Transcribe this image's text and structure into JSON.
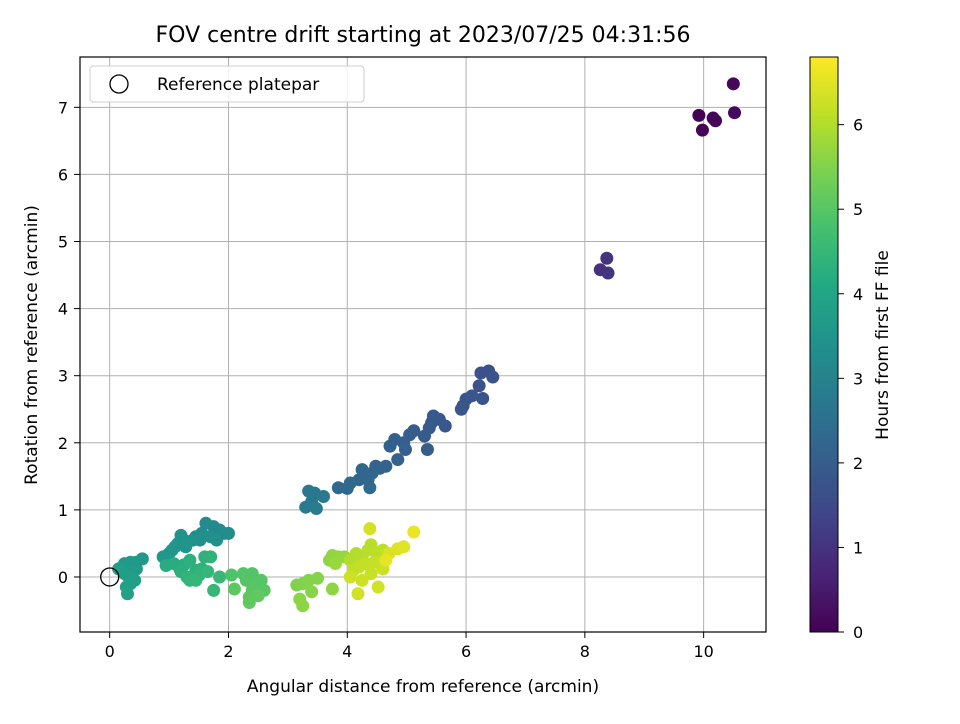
{
  "chart_data": {
    "type": "scatter",
    "title": "FOV centre drift starting at 2023/07/25 04:31:56",
    "xlabel": "Angular distance from reference (arcmin)",
    "ylabel": "Rotation from reference (arcmin)",
    "xlim": [
      -0.5,
      11.05
    ],
    "ylim": [
      -0.82,
      7.75
    ],
    "xticks": [
      "0",
      "2",
      "4",
      "6",
      "8",
      "10"
    ],
    "yticks": [
      "0",
      "1",
      "2",
      "3",
      "4",
      "5",
      "6",
      "7"
    ],
    "grid": true,
    "legend": {
      "position": "top-left",
      "entries": [
        "Reference platepar"
      ]
    },
    "reference": {
      "x": 0,
      "y": 0
    },
    "colorbar": {
      "label": "Hours from first FF file",
      "colormap": "viridis",
      "range": [
        0,
        6.8
      ],
      "ticks": [
        "0",
        "1",
        "2",
        "3",
        "4",
        "5",
        "6"
      ]
    },
    "series": [
      {
        "points": [
          [
            9.92,
            6.88,
            0.05
          ],
          [
            9.98,
            6.66,
            0.08
          ],
          [
            10.16,
            6.84,
            0.1
          ],
          [
            10.2,
            6.8,
            0.12
          ],
          [
            10.5,
            7.35,
            0.15
          ],
          [
            10.52,
            6.92,
            0.18
          ],
          [
            8.26,
            4.58,
            0.95
          ],
          [
            8.37,
            4.75,
            1.0
          ],
          [
            8.39,
            4.53,
            1.05
          ],
          [
            6.25,
            3.04,
            1.65
          ],
          [
            6.38,
            3.07,
            1.68
          ],
          [
            6.45,
            2.98,
            1.7
          ],
          [
            6.22,
            2.85,
            1.72
          ],
          [
            6.28,
            2.66,
            1.75
          ],
          [
            6.1,
            2.7,
            1.78
          ],
          [
            6.0,
            2.65,
            1.8
          ],
          [
            5.95,
            2.55,
            1.82
          ],
          [
            5.92,
            2.5,
            1.84
          ],
          [
            5.65,
            2.25,
            1.86
          ],
          [
            5.55,
            2.35,
            1.88
          ],
          [
            5.45,
            2.4,
            1.9
          ],
          [
            5.42,
            2.3,
            1.92
          ],
          [
            5.38,
            2.22,
            1.94
          ],
          [
            5.3,
            2.1,
            1.96
          ],
          [
            5.35,
            1.9,
            1.98
          ],
          [
            5.12,
            2.18,
            2.0
          ],
          [
            5.05,
            2.12,
            2.02
          ],
          [
            4.95,
            2.0,
            2.04
          ],
          [
            4.8,
            2.05,
            2.06
          ],
          [
            4.72,
            1.95,
            2.08
          ],
          [
            4.98,
            1.9,
            2.1
          ],
          [
            4.85,
            1.75,
            2.12
          ],
          [
            4.65,
            1.65,
            2.14
          ],
          [
            4.55,
            1.62,
            2.16
          ],
          [
            4.48,
            1.65,
            2.18
          ],
          [
            4.42,
            1.55,
            2.2
          ],
          [
            4.35,
            1.45,
            2.22
          ],
          [
            4.25,
            1.6,
            2.24
          ],
          [
            4.2,
            1.45,
            2.26
          ],
          [
            4.05,
            1.4,
            2.28
          ],
          [
            4.0,
            1.32,
            2.3
          ],
          [
            3.85,
            1.33,
            2.32
          ],
          [
            4.38,
            1.33,
            2.34
          ],
          [
            3.35,
            1.28,
            2.7
          ],
          [
            3.45,
            1.25,
            2.72
          ],
          [
            3.6,
            1.2,
            2.74
          ],
          [
            3.4,
            1.12,
            2.76
          ],
          [
            3.3,
            1.04,
            2.78
          ],
          [
            3.48,
            1.02,
            2.8
          ],
          [
            1.62,
            0.8,
            3.2
          ],
          [
            1.75,
            0.75,
            3.22
          ],
          [
            1.85,
            0.7,
            3.24
          ],
          [
            1.92,
            0.65,
            3.26
          ],
          [
            2.0,
            0.65,
            3.28
          ],
          [
            1.55,
            0.65,
            3.3
          ],
          [
            1.45,
            0.6,
            3.32
          ],
          [
            1.7,
            0.6,
            3.34
          ],
          [
            1.8,
            0.55,
            3.36
          ],
          [
            1.52,
            0.55,
            3.38
          ],
          [
            1.4,
            0.55,
            3.4
          ],
          [
            1.2,
            0.62,
            3.42
          ],
          [
            1.25,
            0.55,
            3.44
          ],
          [
            1.15,
            0.5,
            3.46
          ],
          [
            1.3,
            0.5,
            3.48
          ],
          [
            1.28,
            0.45,
            3.5
          ],
          [
            1.1,
            0.45,
            3.52
          ],
          [
            1.05,
            0.4,
            3.54
          ],
          [
            1.0,
            0.35,
            3.56
          ],
          [
            0.9,
            0.3,
            3.58
          ],
          [
            0.98,
            0.25,
            3.6
          ],
          [
            0.55,
            0.27,
            3.62
          ],
          [
            0.45,
            0.22,
            3.64
          ],
          [
            0.35,
            0.22,
            3.66
          ],
          [
            0.25,
            0.2,
            3.68
          ],
          [
            0.45,
            0.12,
            3.7
          ],
          [
            0.38,
            0.08,
            3.72
          ],
          [
            0.15,
            0.12,
            3.74
          ],
          [
            0.25,
            0.05,
            3.76
          ],
          [
            0.32,
            0.0,
            3.78
          ],
          [
            0.42,
            -0.05,
            3.8
          ],
          [
            0.35,
            -0.1,
            3.82
          ],
          [
            0.28,
            -0.15,
            3.84
          ],
          [
            0.3,
            -0.25,
            3.86
          ],
          [
            0.95,
            0.17,
            4.2
          ],
          [
            1.08,
            0.2,
            4.22
          ],
          [
            1.18,
            0.12,
            4.24
          ],
          [
            1.25,
            0.18,
            4.26
          ],
          [
            1.2,
            0.08,
            4.28
          ],
          [
            1.35,
            0.25,
            4.3
          ],
          [
            1.45,
            0.1,
            4.32
          ],
          [
            1.55,
            0.12,
            4.34
          ],
          [
            1.6,
            0.3,
            4.36
          ],
          [
            1.7,
            0.3,
            4.38
          ],
          [
            1.3,
            0.0,
            4.4
          ],
          [
            1.35,
            -0.05,
            4.42
          ],
          [
            1.5,
            0.02,
            4.44
          ],
          [
            1.65,
            0.08,
            4.46
          ],
          [
            1.45,
            -0.05,
            4.48
          ],
          [
            1.75,
            -0.2,
            4.5
          ],
          [
            1.85,
            0.0,
            4.52
          ],
          [
            2.05,
            0.03,
            4.9
          ],
          [
            2.25,
            0.05,
            4.92
          ],
          [
            2.4,
            0.05,
            4.94
          ],
          [
            2.3,
            -0.05,
            4.96
          ],
          [
            2.55,
            -0.05,
            4.98
          ],
          [
            2.45,
            -0.1,
            5.0
          ],
          [
            2.6,
            -0.2,
            5.02
          ],
          [
            2.4,
            -0.2,
            5.04
          ],
          [
            2.35,
            -0.3,
            5.06
          ],
          [
            2.1,
            -0.18,
            5.08
          ],
          [
            2.35,
            -0.38,
            5.1
          ],
          [
            2.5,
            -0.28,
            5.12
          ],
          [
            3.15,
            -0.12,
            5.5
          ],
          [
            3.25,
            -0.1,
            5.52
          ],
          [
            3.35,
            -0.05,
            5.54
          ],
          [
            3.5,
            -0.02,
            5.56
          ],
          [
            3.4,
            -0.22,
            5.58
          ],
          [
            3.2,
            -0.33,
            5.6
          ],
          [
            3.25,
            -0.43,
            5.62
          ],
          [
            3.75,
            -0.18,
            5.64
          ],
          [
            3.7,
            0.25,
            5.66
          ],
          [
            3.75,
            0.32,
            5.68
          ],
          [
            3.85,
            0.3,
            5.7
          ],
          [
            3.95,
            0.3,
            5.72
          ],
          [
            3.8,
            0.2,
            5.74
          ],
          [
            4.05,
            0.25,
            6.0
          ],
          [
            4.15,
            0.35,
            6.02
          ],
          [
            4.25,
            0.3,
            6.04
          ],
          [
            4.35,
            0.4,
            6.06
          ],
          [
            4.4,
            0.48,
            6.08
          ],
          [
            4.5,
            0.35,
            6.1
          ],
          [
            4.6,
            0.4,
            6.12
          ],
          [
            4.1,
            0.1,
            6.14
          ],
          [
            4.2,
            0.15,
            6.16
          ],
          [
            4.3,
            0.2,
            6.18
          ],
          [
            4.45,
            0.22,
            6.2
          ],
          [
            4.55,
            0.2,
            6.22
          ],
          [
            4.4,
            0.05,
            6.24
          ],
          [
            4.6,
            0.12,
            6.26
          ],
          [
            4.25,
            -0.05,
            6.28
          ],
          [
            4.05,
            0.0,
            6.3
          ],
          [
            4.18,
            -0.25,
            6.32
          ],
          [
            4.52,
            -0.15,
            6.34
          ],
          [
            4.38,
            0.72,
            6.36
          ],
          [
            4.7,
            0.35,
            6.4
          ],
          [
            4.85,
            0.42,
            6.45
          ],
          [
            4.95,
            0.45,
            6.5
          ],
          [
            5.12,
            0.67,
            6.6
          ],
          [
            4.65,
            0.25,
            6.55
          ]
        ]
      }
    ]
  }
}
